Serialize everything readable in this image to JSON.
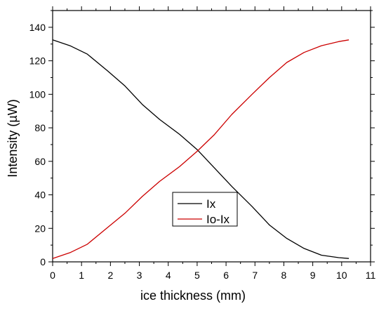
{
  "chart_data": {
    "type": "line",
    "title": "",
    "xlabel": "ice thickness (mm)",
    "ylabel": "Intensity (µW)",
    "xlim": [
      0,
      11
    ],
    "ylim": [
      0,
      150
    ],
    "x_ticks": [
      0,
      1,
      2,
      3,
      4,
      5,
      6,
      7,
      8,
      9,
      10,
      11
    ],
    "y_ticks": [
      0,
      20,
      40,
      60,
      80,
      100,
      120,
      140
    ],
    "grid": false,
    "legend_position": "bottom-center",
    "series": [
      {
        "name": "Ix",
        "color": "#000000",
        "x": [
          0,
          0.6,
          1.2,
          1.9,
          2.5,
          3.1,
          3.7,
          4.4,
          5.0,
          5.6,
          6.2,
          6.9,
          7.5,
          8.1,
          8.7,
          9.3,
          9.9,
          10.25
        ],
        "y": [
          132.5,
          129,
          124,
          114,
          105,
          94,
          85,
          76,
          67,
          56,
          45,
          33,
          22,
          14,
          8,
          4,
          2.5,
          2
        ]
      },
      {
        "name": "Io-Ix",
        "color": "#cc0000",
        "x": [
          0,
          0.6,
          1.2,
          1.9,
          2.5,
          3.1,
          3.7,
          4.4,
          5.0,
          5.6,
          6.2,
          6.9,
          7.5,
          8.1,
          8.7,
          9.3,
          9.9,
          10.25
        ],
        "y": [
          2,
          5.5,
          10.5,
          20.5,
          29,
          39,
          48,
          57,
          66,
          76,
          88,
          100,
          110,
          119,
          125,
          129,
          131.5,
          132.5
        ]
      }
    ]
  }
}
